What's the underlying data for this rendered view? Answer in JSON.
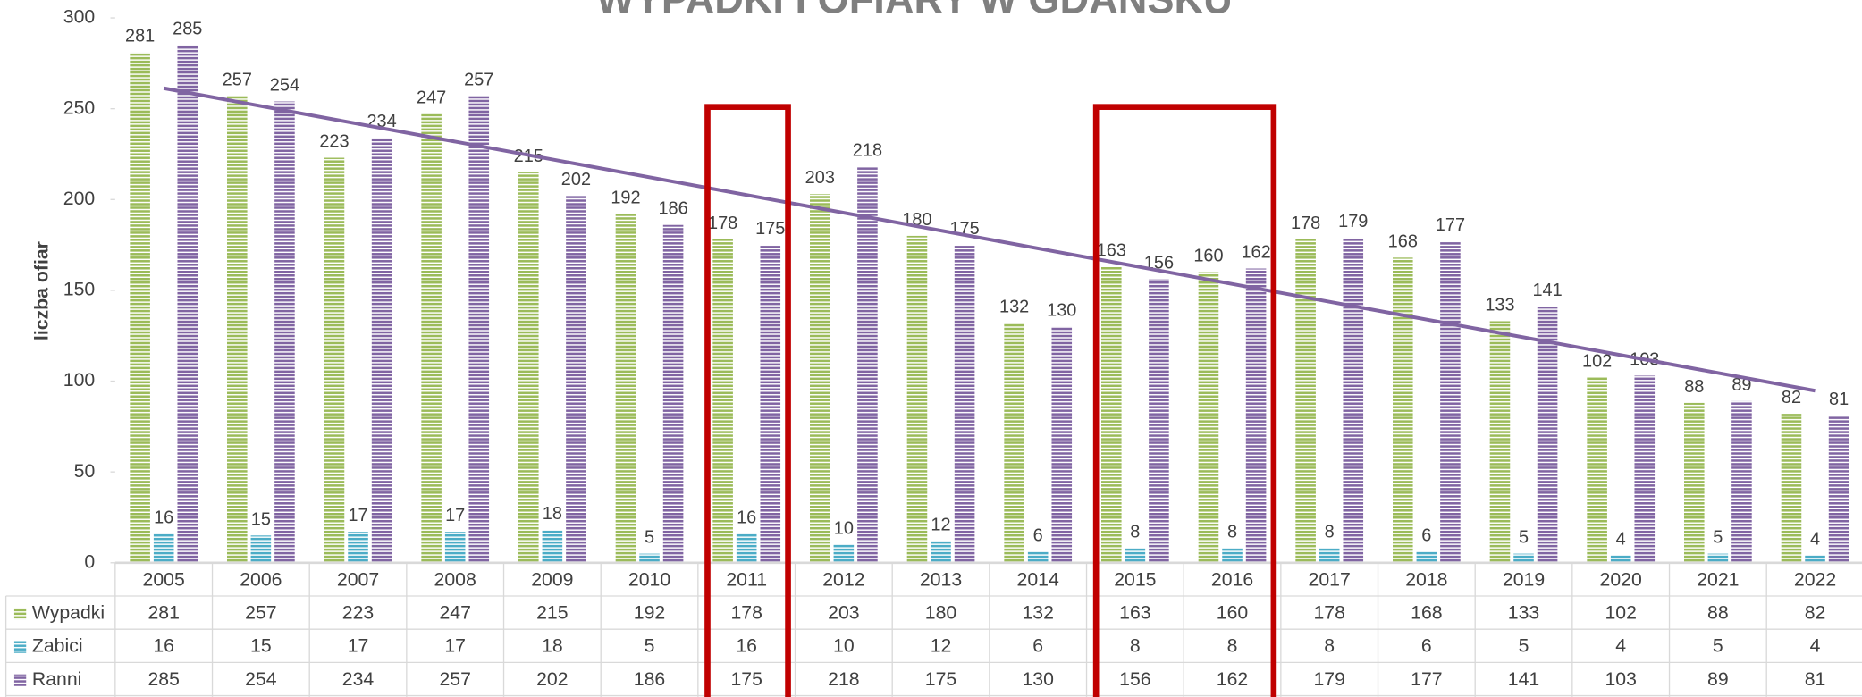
{
  "chart_data": {
    "type": "bar",
    "title": "WYPADKI I OFIARY W GDAŃSKU",
    "y_axis_label": "liczba ofiar",
    "categories": [
      "2005",
      "2006",
      "2007",
      "2008",
      "2009",
      "2010",
      "2011",
      "2012",
      "2013",
      "2014",
      "2015",
      "2016",
      "2017",
      "2018",
      "2019",
      "2020",
      "2021",
      "2022"
    ],
    "series": [
      {
        "name": "Wypadki",
        "color": "#9bbb59",
        "values": [
          281,
          257,
          223,
          247,
          215,
          192,
          178,
          203,
          180,
          132,
          163,
          160,
          178,
          168,
          133,
          102,
          88,
          82
        ]
      },
      {
        "name": "Zabici",
        "color": "#4bacc6",
        "values": [
          16,
          15,
          17,
          17,
          18,
          5,
          16,
          10,
          12,
          6,
          8,
          8,
          8,
          6,
          5,
          4,
          5,
          4
        ]
      },
      {
        "name": "Ranni",
        "color": "#8064a2",
        "values": [
          285,
          254,
          234,
          257,
          202,
          186,
          175,
          218,
          175,
          130,
          156,
          162,
          179,
          177,
          141,
          103,
          89,
          81
        ]
      }
    ],
    "ylim": [
      0,
      300
    ],
    "yticks": [
      0,
      50,
      100,
      150,
      200,
      250,
      300
    ],
    "trendline": true,
    "trendline_color": "#8064a2",
    "highlights": [
      {
        "from": "2011",
        "to": "2011"
      },
      {
        "from": "2015",
        "to": "2016"
      }
    ],
    "highlight_color": "#c00000",
    "data_table": true
  }
}
